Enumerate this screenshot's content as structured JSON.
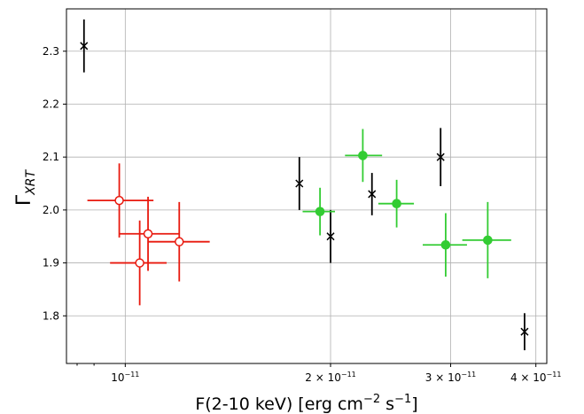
{
  "chart_data": {
    "type": "scatter",
    "xscale": "log",
    "xlim": [
      8.2e-12,
      4.15e-11
    ],
    "ylim": [
      1.71,
      2.38
    ],
    "xlabel": "F(2-10 keV) [erg cm",
    "xlabel_exp1": "−2",
    "xlabel_mid": " s",
    "xlabel_exp2": "−1",
    "xlabel_end": "]",
    "ylabel": "Γ",
    "ylabel_sub": "XRT",
    "grid": true,
    "y_ticks": [
      1.8,
      1.9,
      2.0,
      2.1,
      2.2,
      2.3
    ],
    "y_tick_labels": [
      "1.8",
      "1.9",
      "2.0",
      "2.1",
      "2.2",
      "2.3"
    ],
    "x_ticks": [
      {
        "value": 1e-11,
        "mantissa": "10",
        "exponent": "−11"
      },
      {
        "value": 2e-11,
        "mantissa": "2 × 10",
        "exponent": "−11"
      },
      {
        "value": 3e-11,
        "mantissa": "3 × 10",
        "exponent": "−11"
      },
      {
        "value": 4e-11,
        "mantissa": "4 × 10",
        "exponent": "−11"
      }
    ],
    "x_minor_ticks": [
      9e-12,
      5e-11
    ],
    "series": [
      {
        "marker": "x",
        "color": "#000000",
        "points": [
          {
            "x": 8.7e-12,
            "y": 2.31,
            "yerr": 0.05
          },
          {
            "x": 1.8e-11,
            "y": 2.05,
            "yerr": 0.05
          },
          {
            "x": 2e-11,
            "y": 1.95,
            "yerr": 0.05
          },
          {
            "x": 2.3e-11,
            "y": 2.03,
            "yerr": 0.04
          },
          {
            "x": 2.9e-11,
            "y": 2.1,
            "yerr": 0.055
          },
          {
            "x": 3.85e-11,
            "y": 1.77,
            "yerr": 0.035
          }
        ]
      },
      {
        "marker": "open-circle",
        "color": "#e8190e",
        "points": [
          {
            "x": 9.8e-12,
            "y": 2.018,
            "xerr": [
              8.8e-12,
              1.1e-11
            ],
            "yerr": 0.07
          },
          {
            "x": 1.05e-11,
            "y": 1.9,
            "xerr": [
              9.5e-12,
              1.15e-11
            ],
            "yerr": 0.08
          },
          {
            "x": 1.08e-11,
            "y": 1.955,
            "xerr": [
              9.8e-12,
              1.2e-11
            ],
            "yerr": 0.07
          },
          {
            "x": 1.2e-11,
            "y": 1.94,
            "xerr": [
              1.08e-11,
              1.33e-11
            ],
            "yerr": 0.075
          }
        ]
      },
      {
        "marker": "filled-circle",
        "color": "#33cc33",
        "points": [
          {
            "x": 1.93e-11,
            "y": 1.997,
            "xerr": [
              1.82e-11,
              2.03e-11
            ],
            "yerr": 0.045
          },
          {
            "x": 2.23e-11,
            "y": 2.103,
            "xerr": [
              2.1e-11,
              2.38e-11
            ],
            "yerr": 0.05
          },
          {
            "x": 2.5e-11,
            "y": 2.012,
            "xerr": [
              2.35e-11,
              2.65e-11
            ],
            "yerr": 0.045
          },
          {
            "x": 2.95e-11,
            "y": 1.934,
            "xerr": [
              2.73e-11,
              3.17e-11
            ],
            "yerr": 0.06
          },
          {
            "x": 3.4e-11,
            "y": 1.943,
            "xerr": [
              3.12e-11,
              3.68e-11
            ],
            "yerr": 0.072
          }
        ]
      }
    ]
  }
}
